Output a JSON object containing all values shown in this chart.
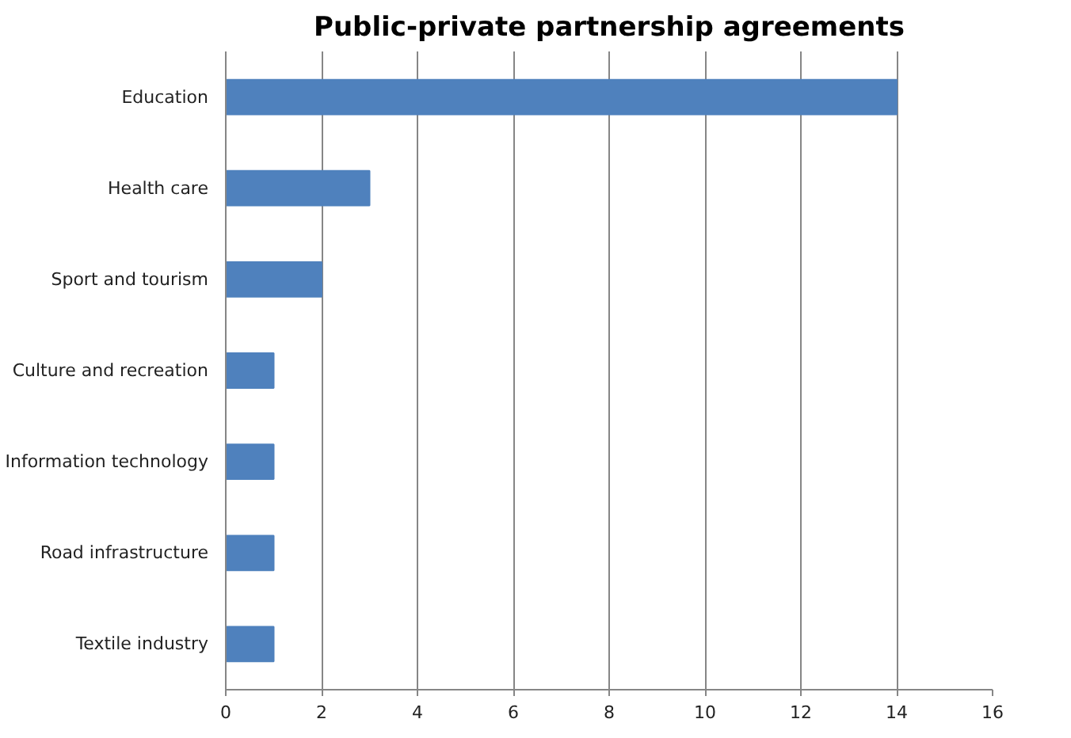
{
  "chart_data": {
    "type": "bar",
    "orientation": "horizontal",
    "title": "Public-private partnership agreements",
    "categories": [
      "Education",
      "Health care",
      "Sport and tourism",
      "Culture and recreation",
      "Information technology",
      "Road infrastructure",
      "Textile industry"
    ],
    "values": [
      14,
      3,
      2,
      1,
      1,
      1,
      1
    ],
    "color": "#4f81bd",
    "xlim": [
      0,
      16
    ],
    "xticks": [
      0,
      2,
      4,
      6,
      8,
      10,
      12,
      14,
      16
    ],
    "grid": "x"
  }
}
